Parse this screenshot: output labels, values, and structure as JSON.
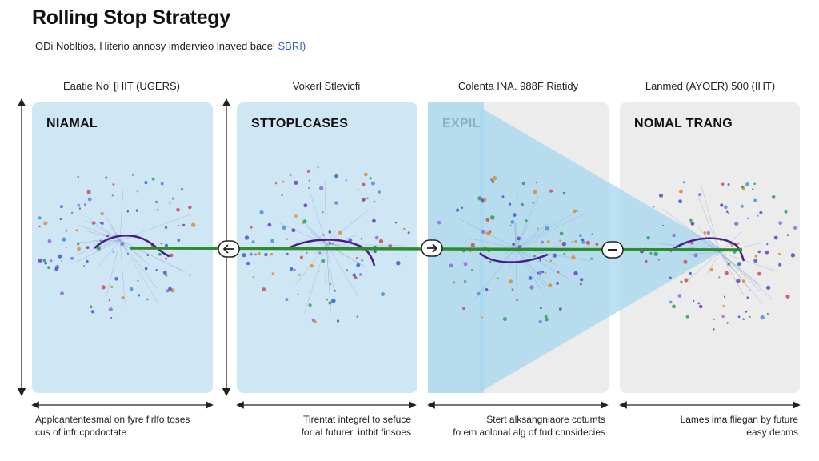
{
  "header": {
    "title": "Rolling Stop Strategy",
    "subtitle_main": "ODi Nobltios, Hiterio annosy imdervieo lnaved bacel",
    "subtitle_accent": "SBRI)"
  },
  "columns": [
    {
      "heading": "Eaatie No' [HIT (UGERS)",
      "panel_label": "NIAMAL",
      "caption_line1": "Applcantentesmal on fyre firlfo toses",
      "caption_line2": "cus of infr cpodoctate"
    },
    {
      "heading": "Vokerl Stlevicfi",
      "panel_label": "STTOPLCASES",
      "caption_line1": "Tirentat integrel to sefuce",
      "caption_line2": "for al futurer, intbit finsoes"
    },
    {
      "heading": "Colenta INA. 988F Riatidy",
      "panel_label": "EXPIL",
      "caption_line1": "Stert alksangniaore cotumts",
      "caption_line2": "fo em aolonal alg of fud cnnsidecies"
    },
    {
      "heading": "Lanmed (AYOER) 500 (IHT)",
      "panel_label": "NOMAL TRANG",
      "caption_line1": "Lames ima fliegan by future",
      "caption_line2": "easy deoms"
    }
  ],
  "colors": {
    "panel_blue": "#cfe7f4",
    "panel_grey": "#ececec",
    "timeline_green": "#2e8b2e",
    "curve_purple": "#4b1a8c",
    "beam_blue": "#a9d8ef"
  },
  "connectors": [
    {
      "icon": "left-arrow-icon"
    },
    {
      "icon": "right-arrow-icon"
    },
    {
      "icon": "minus-icon"
    }
  ]
}
